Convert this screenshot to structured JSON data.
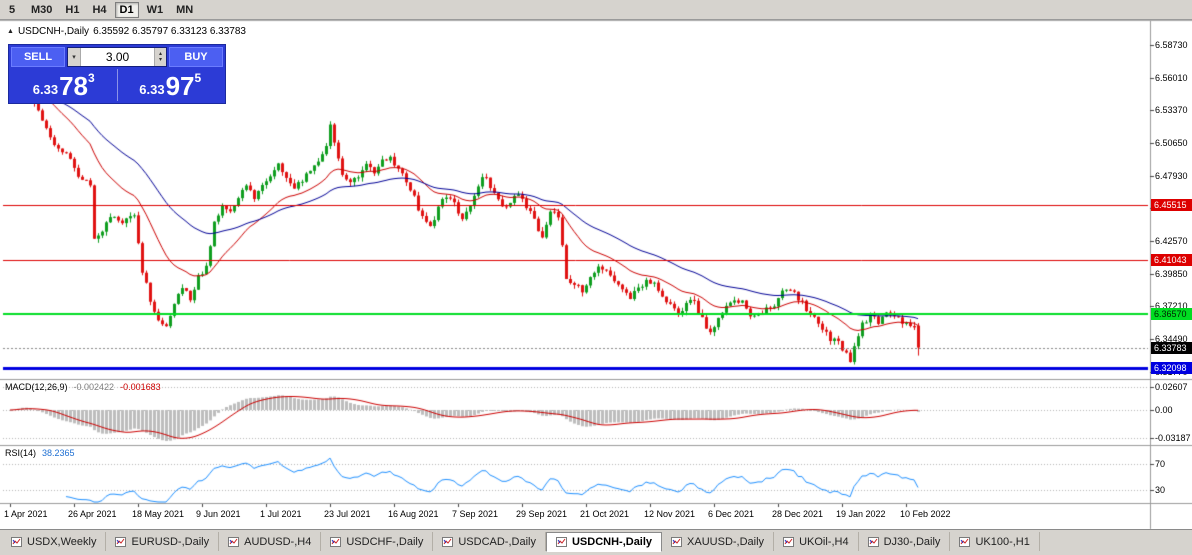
{
  "toolbar": {
    "periods": [
      {
        "label": "5",
        "active": false
      },
      {
        "label": "M30",
        "active": false
      },
      {
        "label": "H1",
        "active": false
      },
      {
        "label": "H4",
        "active": false
      },
      {
        "label": "D1",
        "active": true
      },
      {
        "label": "W1",
        "active": false
      },
      {
        "label": "MN",
        "active": false
      }
    ]
  },
  "chart": {
    "title": "USDCNH-,Daily",
    "ohlc": "6.35592 6.35797 6.33123 6.33783"
  },
  "trade_panel": {
    "sell_label": "SELL",
    "buy_label": "BUY",
    "volume": "3.00",
    "bid_small": "6.33",
    "bid_big": "78",
    "bid_sup": "3",
    "ask_small": "6.33",
    "ask_big": "97",
    "ask_sup": "5"
  },
  "macd_panel": {
    "label": "MACD(12,26,9)",
    "value_main": "-0.002422",
    "value_signal": "-0.001683",
    "ticks": [
      "0.02607",
      "0.00",
      "-0.03187"
    ]
  },
  "rsi_panel": {
    "label": "RSI(14)",
    "value": "38.2365",
    "ticks": [
      "70",
      "30"
    ]
  },
  "tabs": [
    {
      "label": "USDX,Weekly",
      "active": false
    },
    {
      "label": "EURUSD-,Daily",
      "active": false
    },
    {
      "label": "AUDUSD-,H4",
      "active": false
    },
    {
      "label": "USDCHF-,Daily",
      "active": false
    },
    {
      "label": "USDCAD-,Daily",
      "active": false
    },
    {
      "label": "USDCNH-,Daily",
      "active": true
    },
    {
      "label": "XAUUSD-,Daily",
      "active": false
    },
    {
      "label": "UKOil-,H4",
      "active": false
    },
    {
      "label": "DJ30-,Daily",
      "active": false
    },
    {
      "label": "UK100-,H1",
      "active": false
    }
  ],
  "chart_data": {
    "type": "candlestick",
    "symbol": "USDCNH-",
    "timeframe": "Daily",
    "last_candle": {
      "open": 6.35592,
      "high": 6.35797,
      "low": 6.33123,
      "close": 6.33783
    },
    "y_ticks": [
      "6.58730",
      "6.56010",
      "6.53370",
      "6.50650",
      "6.47930",
      "6.45290",
      "6.42570",
      "6.39850",
      "6.37210",
      "6.34490",
      "6.31770"
    ],
    "x_labels": [
      "1 Apr 2021",
      "26 Apr 2021",
      "18 May 2021",
      "9 Jun 2021",
      "1 Jul 2021",
      "23 Jul 2021",
      "16 Aug 2021",
      "7 Sep 2021",
      "29 Sep 2021",
      "21 Oct 2021",
      "12 Nov 2021",
      "6 Dec 2021",
      "28 Dec 2021",
      "19 Jan 2022",
      "10 Feb 2022"
    ],
    "candles_per_label": 16,
    "levels": [
      {
        "text": "6.45515",
        "price": 6.45515,
        "bg": "#dd0000",
        "fg": "#ffffff",
        "width": 1,
        "dashed": false,
        "name": "hline-resistance-upper"
      },
      {
        "text": "6.41043",
        "price": 6.41043,
        "bg": "#dd0000",
        "fg": "#ffffff",
        "width": 1,
        "dashed": false,
        "name": "hline-resistance-lower"
      },
      {
        "text": "6.36570",
        "price": 6.3657,
        "bg": "#00dd22",
        "fg": "#002200",
        "width": 2,
        "dashed": false,
        "name": "hline-support-green"
      },
      {
        "text": "6.32098",
        "price": 6.32098,
        "bg": "#0000e0",
        "fg": "#ffffff",
        "width": 3,
        "dashed": false,
        "name": "hline-support-blue"
      },
      {
        "text": "6.33783",
        "price": 6.33783,
        "bg": "#000000",
        "fg": "#ffffff",
        "width": 1,
        "dashed": true,
        "name": "current-price"
      }
    ],
    "y_ref": {
      "price_a": 6.5873,
      "y_a": 45,
      "price_b": 6.32098,
      "y_b": 368
    },
    "x0": 10,
    "dx": 4,
    "candle_count": 228,
    "seed": 12,
    "anchors": [
      [
        0,
        6.546
      ],
      [
        2,
        6.556
      ],
      [
        4,
        6.568
      ],
      [
        6,
        6.548
      ],
      [
        9,
        6.527
      ],
      [
        12,
        6.506
      ],
      [
        15,
        6.498
      ],
      [
        18,
        6.481
      ],
      [
        21,
        6.471
      ],
      [
        22,
        6.428
      ],
      [
        24,
        6.432
      ],
      [
        26,
        6.447
      ],
      [
        28,
        6.44
      ],
      [
        30,
        6.443
      ],
      [
        32,
        6.449
      ],
      [
        34,
        6.402
      ],
      [
        36,
        6.377
      ],
      [
        38,
        6.362
      ],
      [
        40,
        6.354
      ],
      [
        42,
        6.373
      ],
      [
        44,
        6.386
      ],
      [
        46,
        6.379
      ],
      [
        48,
        6.396
      ],
      [
        50,
        6.406
      ],
      [
        52,
        6.441
      ],
      [
        54,
        6.453
      ],
      [
        56,
        6.449
      ],
      [
        58,
        6.463
      ],
      [
        60,
        6.469
      ],
      [
        62,
        6.463
      ],
      [
        64,
        6.471
      ],
      [
        66,
        6.479
      ],
      [
        68,
        6.489
      ],
      [
        70,
        6.479
      ],
      [
        72,
        6.469
      ],
      [
        74,
        6.476
      ],
      [
        76,
        6.486
      ],
      [
        78,
        6.491
      ],
      [
        80,
        6.503
      ],
      [
        81,
        6.524
      ],
      [
        82,
        6.506
      ],
      [
        84,
        6.481
      ],
      [
        86,
        6.473
      ],
      [
        88,
        6.479
      ],
      [
        90,
        6.489
      ],
      [
        92,
        6.483
      ],
      [
        94,
        6.493
      ],
      [
        96,
        6.496
      ],
      [
        98,
        6.483
      ],
      [
        100,
        6.476
      ],
      [
        102,
        6.461
      ],
      [
        104,
        6.446
      ],
      [
        106,
        6.438
      ],
      [
        108,
        6.453
      ],
      [
        110,
        6.463
      ],
      [
        112,
        6.459
      ],
      [
        114,
        6.443
      ],
      [
        116,
        6.456
      ],
      [
        118,
        6.473
      ],
      [
        120,
        6.479
      ],
      [
        122,
        6.463
      ],
      [
        124,
        6.453
      ],
      [
        126,
        6.459
      ],
      [
        128,
        6.463
      ],
      [
        130,
        6.453
      ],
      [
        132,
        6.443
      ],
      [
        134,
        6.429
      ],
      [
        136,
        6.449
      ],
      [
        138,
        6.446
      ],
      [
        140,
        6.396
      ],
      [
        142,
        6.389
      ],
      [
        144,
        6.386
      ],
      [
        146,
        6.396
      ],
      [
        148,
        6.403
      ],
      [
        150,
        6.399
      ],
      [
        152,
        6.393
      ],
      [
        154,
        6.386
      ],
      [
        156,
        6.379
      ],
      [
        158,
        6.386
      ],
      [
        160,
        6.393
      ],
      [
        162,
        6.389
      ],
      [
        164,
        6.381
      ],
      [
        166,
        6.373
      ],
      [
        168,
        6.366
      ],
      [
        170,
        6.373
      ],
      [
        172,
        6.376
      ],
      [
        174,
        6.361
      ],
      [
        176,
        6.349
      ],
      [
        178,
        6.363
      ],
      [
        180,
        6.373
      ],
      [
        182,
        6.379
      ],
      [
        184,
        6.376
      ],
      [
        186,
        6.366
      ],
      [
        188,
        6.363
      ],
      [
        190,
        6.369
      ],
      [
        192,
        6.373
      ],
      [
        194,
        6.383
      ],
      [
        196,
        6.386
      ],
      [
        198,
        6.379
      ],
      [
        200,
        6.369
      ],
      [
        202,
        6.363
      ],
      [
        204,
        6.353
      ],
      [
        206,
        6.346
      ],
      [
        208,
        6.341
      ],
      [
        210,
        6.332
      ],
      [
        211,
        6.328
      ],
      [
        213,
        6.346
      ],
      [
        214,
        6.358
      ],
      [
        216,
        6.364
      ],
      [
        218,
        6.36
      ],
      [
        220,
        6.366
      ],
      [
        222,
        6.362
      ],
      [
        224,
        6.36
      ],
      [
        227,
        6.357
      ]
    ],
    "indicators": {
      "ma_fast": {
        "period": 20,
        "color": "#cc0000"
      },
      "ma_slow": {
        "period": 45,
        "color": "#000096"
      },
      "macd": {
        "fast": 12,
        "slow": 26,
        "signal": 9
      },
      "rsi": {
        "period": 14
      }
    },
    "colors": {
      "bull": "#0f9e1f",
      "bear": "#e01212",
      "macd_hist": "#bdbdbd",
      "macd_signal": "#cc0000",
      "rsi": "#1e90ff",
      "grid_dotted": "#b4b4b4"
    }
  }
}
